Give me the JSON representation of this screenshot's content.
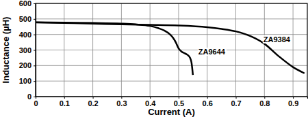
{
  "chart_data": {
    "type": "line",
    "x_label": "Current (A)",
    "y_label": "Inductance (µH)",
    "xlim": [
      0,
      0.95
    ],
    "ylim": [
      0,
      600
    ],
    "xticks": [
      0,
      0.1,
      0.2,
      0.3,
      0.4,
      0.5,
      0.6,
      0.7,
      0.8,
      0.9
    ],
    "yticks": [
      0,
      100,
      200,
      300,
      400,
      500,
      600
    ],
    "grid": true,
    "series": [
      {
        "name": "ZA9644",
        "color": "#000000",
        "line_style": "solid",
        "x": [
          0,
          0.1,
          0.2,
          0.3,
          0.35,
          0.4,
          0.43,
          0.45,
          0.47,
          0.48,
          0.49,
          0.5,
          0.51,
          0.52,
          0.53,
          0.54,
          0.545,
          0.55
        ],
        "values": [
          478,
          476,
          474,
          470,
          465,
          455,
          440,
          425,
          400,
          380,
          350,
          310,
          290,
          280,
          270,
          250,
          220,
          140
        ]
      },
      {
        "name": "ZA9384",
        "color": "#000000",
        "line_style": "solid",
        "x": [
          0,
          0.1,
          0.2,
          0.3,
          0.4,
          0.5,
          0.6,
          0.65,
          0.7,
          0.75,
          0.8,
          0.85,
          0.9,
          0.94
        ],
        "values": [
          478,
          474,
          470,
          465,
          462,
          458,
          447,
          436,
          420,
          390,
          340,
          260,
          190,
          150
        ]
      }
    ]
  }
}
